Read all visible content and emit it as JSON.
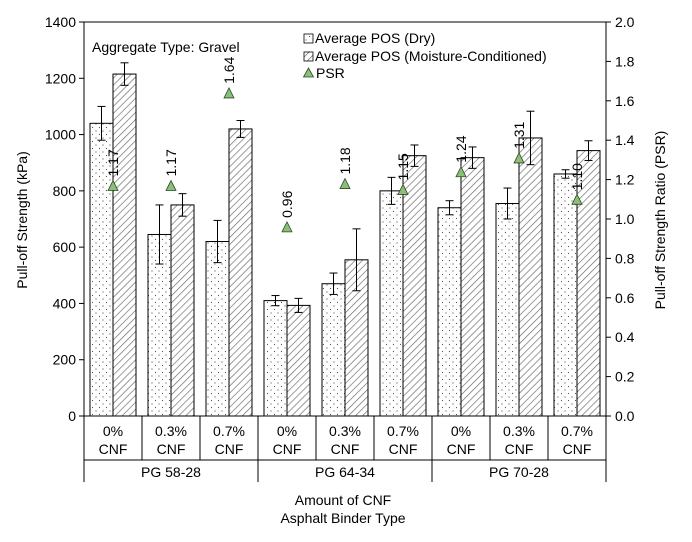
{
  "chart_data": {
    "type": "bar",
    "annotation": "Aggregate Type:  Gravel",
    "categories": [
      {
        "cnf": "0%",
        "unit": "CNF",
        "binder": "PG 58-28"
      },
      {
        "cnf": "0.3%",
        "unit": "CNF",
        "binder": "PG 58-28"
      },
      {
        "cnf": "0.7%",
        "unit": "CNF",
        "binder": "PG 58-28"
      },
      {
        "cnf": "0%",
        "unit": "CNF",
        "binder": "PG 64-34"
      },
      {
        "cnf": "0.3%",
        "unit": "CNF",
        "binder": "PG 64-34"
      },
      {
        "cnf": "0.7%",
        "unit": "CNF",
        "binder": "PG 64-34"
      },
      {
        "cnf": "0%",
        "unit": "CNF",
        "binder": "PG 70-28"
      },
      {
        "cnf": "0.3%",
        "unit": "CNF",
        "binder": "PG 70-28"
      },
      {
        "cnf": "0.7%",
        "unit": "CNF",
        "binder": "PG 70-28"
      }
    ],
    "binder_groups": [
      "PG 58-28",
      "PG 64-34",
      "PG 70-28"
    ],
    "series": [
      {
        "name": "Average POS (Dry)",
        "axis": "left",
        "values": [
          1040,
          645,
          620,
          410,
          470,
          800,
          740,
          755,
          860
        ],
        "errors": [
          60,
          105,
          75,
          18,
          38,
          48,
          25,
          55,
          15
        ]
      },
      {
        "name": "Average POS (Moisture-Conditioned)",
        "axis": "left",
        "values": [
          1215,
          750,
          1020,
          393,
          555,
          925,
          918,
          988,
          943
        ],
        "errors": [
          40,
          40,
          30,
          25,
          110,
          38,
          38,
          95,
          35
        ]
      },
      {
        "name": "PSR",
        "axis": "right",
        "values": [
          1.17,
          1.17,
          1.64,
          0.96,
          1.18,
          1.15,
          1.24,
          1.31,
          1.1
        ],
        "labels": [
          "1.17",
          "1.17",
          "1.64",
          "0.96",
          "1.18",
          "1.15",
          "1.24",
          "1.31",
          "1.10"
        ]
      }
    ],
    "ylabel": "Pull-off  Strength (kPa)",
    "y2label": "Pull-off  Strength Ratio (PSR)",
    "ylim": [
      0,
      1400
    ],
    "y2lim": [
      0,
      2.0
    ],
    "yticks": [
      "0",
      "200",
      "400",
      "600",
      "800",
      "1000",
      "1200",
      "1400"
    ],
    "y2ticks": [
      "0.0",
      "0.2",
      "0.4",
      "0.6",
      "0.8",
      "1.0",
      "1.2",
      "1.4",
      "1.6",
      "1.8",
      "2.0"
    ],
    "xlabel": "Amount of CNF",
    "xlabel2": "Asphalt Binder Type",
    "legend_position": "top-right",
    "colors": {
      "psr_marker": "#8cbf7a",
      "psr_stroke": "#2d4a22",
      "bar_stroke": "#000000"
    }
  }
}
